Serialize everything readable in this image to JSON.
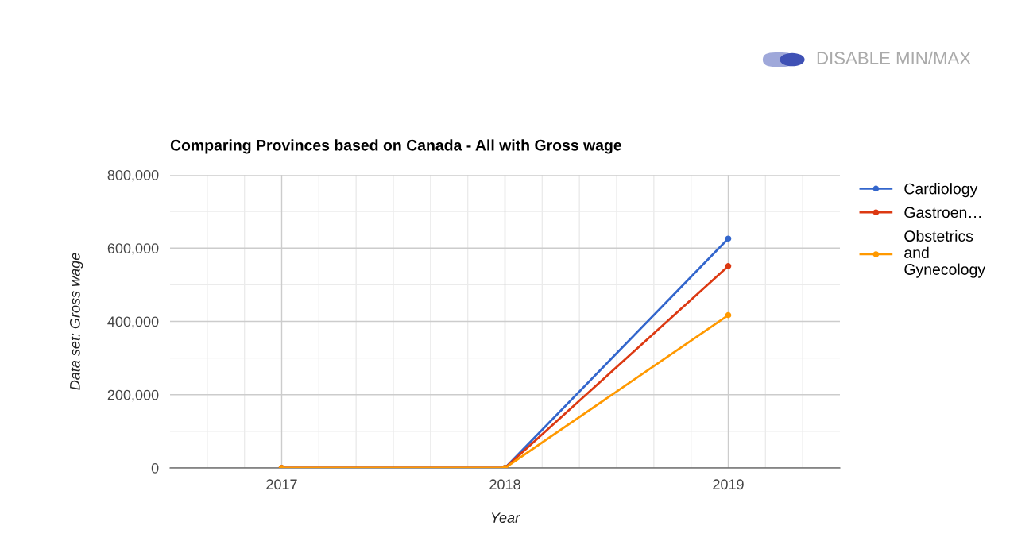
{
  "chart_data": {
    "type": "line",
    "title": "Comparing Provinces based on Canada - All with Gross wage",
    "xlabel": "Year",
    "ylabel": "Data set: Gross wage",
    "annotations": [
      "DISABLE MIN/MAX"
    ],
    "x": [
      2017,
      2018,
      2019
    ],
    "series": [
      {
        "name": "Cardiology",
        "color": "#3366cc",
        "values": [
          0,
          0,
          626000
        ]
      },
      {
        "name": "Gastroen…",
        "color": "#dc3912",
        "values": [
          0,
          0,
          551000
        ]
      },
      {
        "name": "Obstetrics\nand\nGynecology",
        "color": "#ff9900",
        "values": [
          0,
          0,
          417000
        ]
      }
    ],
    "xlim": [
      2016.5,
      2019.5
    ],
    "xticks": [
      2017,
      2018,
      2019
    ],
    "ylim": [
      0,
      800000
    ],
    "yticks": [
      {
        "value": 0,
        "label": "0"
      },
      {
        "value": 200000,
        "label": "200,000"
      },
      {
        "value": 400000,
        "label": "400,000"
      },
      {
        "value": 600000,
        "label": "600,000"
      },
      {
        "value": 800000,
        "label": "800,000"
      }
    ],
    "grid": true,
    "legend": "right",
    "marker": "circle",
    "line_style": "solid"
  }
}
